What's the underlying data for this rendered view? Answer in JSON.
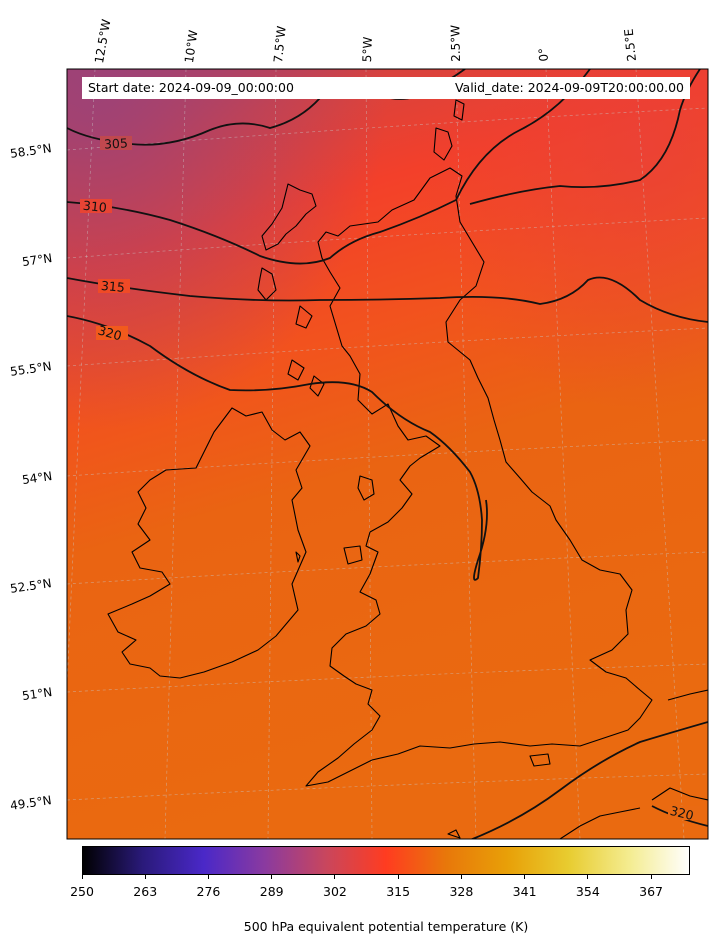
{
  "info": {
    "start_date": "Start date: 2024-09-09_00:00:00",
    "valid_date": "Valid_date: 2024-09-09T20:00:00.00"
  },
  "longitude_labels": [
    "12.5°W",
    "10°W",
    "7.5°W",
    "5°W",
    "2.5°W",
    "0°",
    "2.5°E"
  ],
  "latitude_labels": [
    "58.5°N",
    "57°N",
    "55.5°N",
    "54°N",
    "52.5°N",
    "51°N",
    "49.5°N"
  ],
  "contour_labels": [
    "305",
    "310",
    "315",
    "320",
    "320"
  ],
  "colorbar": {
    "ticks": [
      "250",
      "263",
      "276",
      "289",
      "302",
      "315",
      "328",
      "341",
      "354",
      "367"
    ],
    "label": "500 hPa equivalent potential temperature (K)",
    "range": [
      250,
      375
    ],
    "colormap": "gnuplot2-like",
    "colors": [
      "#000000",
      "#2a1a7a",
      "#4a28c8",
      "#8a3aa0",
      "#c8465e",
      "#ff3c20",
      "#e8780a",
      "#e8a008",
      "#e8cc30",
      "#f4ec90",
      "#ffffff"
    ]
  },
  "map": {
    "field_colors": {
      "north": "#a8426a",
      "mid": "#f0402a",
      "south": "#ea6a12"
    }
  }
}
